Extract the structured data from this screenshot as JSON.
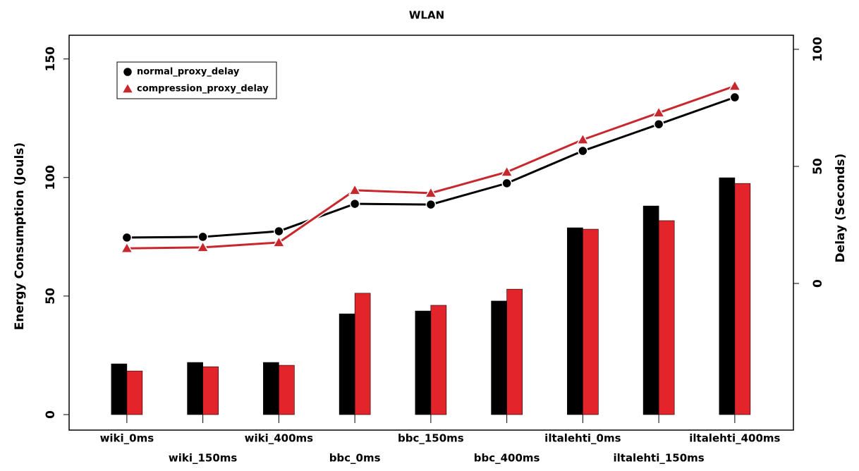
{
  "chart_data": {
    "type": "combo",
    "title": "WLAN",
    "ylabel": "Energy Consumption (Jouls)",
    "y2label": "Delay (Seconds)",
    "categories": [
      "wiki_0ms",
      "wiki_150ms",
      "wiki_400ms",
      "bbc_0ms",
      "bbc_150ms",
      "bbc_400ms",
      "iltalehti_0ms",
      "iltalehti_150ms",
      "iltalehti_400ms"
    ],
    "series": [
      {
        "kind": "bar",
        "color": "#000000",
        "values": [
          21.4,
          22,
          22,
          42.5,
          43.7,
          47.9,
          78.8,
          88,
          99.9
        ]
      },
      {
        "kind": "bar",
        "color": "#e3242b",
        "values": [
          18.4,
          20.2,
          20.8,
          51.2,
          46.1,
          52.9,
          78.2,
          81.8,
          97.5
        ]
      },
      {
        "kind": "line",
        "name": "normal_proxy_delay",
        "color": "#000000",
        "marker": "circle",
        "axis": "y2",
        "values": [
          19.6,
          19.9,
          22.3,
          34,
          33.7,
          42.8,
          56.6,
          68,
          79.5
        ]
      },
      {
        "kind": "line",
        "name": "compression_proxy_delay",
        "color": "#c8282d",
        "marker": "triangle",
        "axis": "y2",
        "values": [
          15,
          15.4,
          17.5,
          39.8,
          38.6,
          47.6,
          61.4,
          72.9,
          84.3
        ]
      }
    ],
    "ylim": [
      0,
      160
    ],
    "yticks": [
      0,
      50,
      100,
      150
    ],
    "y2lim": [
      -56,
      106
    ],
    "y2ticks": [
      0,
      50,
      100
    ],
    "legend": "top-left"
  }
}
